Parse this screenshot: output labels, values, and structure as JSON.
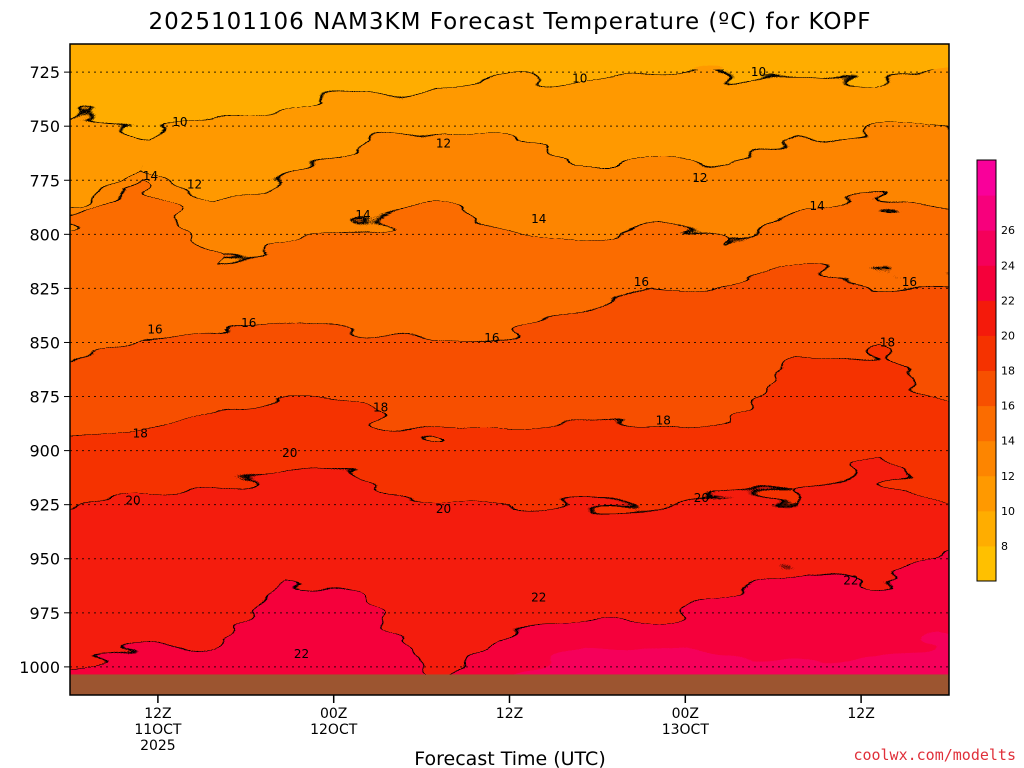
{
  "chart_data": {
    "type": "heatmap",
    "title": "2025101106 NAM3KM Forecast Temperature (ºC) for KOPF",
    "xlabel": "Forecast Time (UTC)",
    "ylabel": "",
    "credit": "coolwx.com/modelts",
    "y_ticks": [
      725,
      750,
      775,
      800,
      825,
      850,
      875,
      900,
      925,
      950,
      975,
      1000
    ],
    "y_tick_labels": [
      "725",
      "750",
      "775",
      "800",
      "825",
      "850",
      "875",
      "900",
      "925",
      "950",
      "975",
      "1000"
    ],
    "ylim": [
      1013,
      712
    ],
    "xlim_hours": [
      6,
      66
    ],
    "x_ticks": [
      {
        "hour": 12,
        "lines": [
          "12Z",
          "11OCT",
          "2025"
        ]
      },
      {
        "hour": 24,
        "lines": [
          "00Z",
          "12OCT"
        ]
      },
      {
        "hour": 36,
        "lines": [
          "12Z"
        ]
      },
      {
        "hour": 48,
        "lines": [
          "00Z",
          "13OCT"
        ]
      },
      {
        "hour": 60,
        "lines": [
          "12Z"
        ]
      }
    ],
    "colorbar": {
      "levels": [
        6,
        8,
        10,
        12,
        14,
        16,
        18,
        20,
        22,
        24,
        26,
        28
      ],
      "labels": [
        "8",
        "10",
        "12",
        "14",
        "16",
        "18",
        "20",
        "22",
        "24",
        "26"
      ],
      "colors": [
        "#ffc000",
        "#ffad00",
        "#ff9900",
        "#fd8500",
        "#fb6c00",
        "#f75000",
        "#f53200",
        "#f41a0b",
        "#f5003a",
        "#f5005a",
        "#f7007c",
        "#f9009a"
      ]
    },
    "contours": [
      {
        "value": 10,
        "label_positions": [
          {
            "h": 13.5,
            "p": 748
          },
          {
            "h": 40.8,
            "p": 728
          },
          {
            "h": 53.0,
            "p": 725
          }
        ]
      },
      {
        "value": 12,
        "label_positions": [
          {
            "h": 14.5,
            "p": 777
          },
          {
            "h": 31.5,
            "p": 758
          },
          {
            "h": 49.0,
            "p": 774
          }
        ]
      },
      {
        "value": 14,
        "label_positions": [
          {
            "h": 11.5,
            "p": 773
          },
          {
            "h": 26.0,
            "p": 791
          },
          {
            "h": 38.0,
            "p": 793
          },
          {
            "h": 57.0,
            "p": 787
          }
        ]
      },
      {
        "value": 16,
        "label_positions": [
          {
            "h": 11.8,
            "p": 844
          },
          {
            "h": 18.2,
            "p": 841
          },
          {
            "h": 34.8,
            "p": 848
          },
          {
            "h": 45.0,
            "p": 822
          },
          {
            "h": 63.3,
            "p": 822
          }
        ]
      },
      {
        "value": 18,
        "label_positions": [
          {
            "h": 10.8,
            "p": 892
          },
          {
            "h": 27.2,
            "p": 880
          },
          {
            "h": 46.5,
            "p": 886
          },
          {
            "h": 61.8,
            "p": 850
          }
        ]
      },
      {
        "value": 20,
        "label_positions": [
          {
            "h": 10.3,
            "p": 923
          },
          {
            "h": 21.0,
            "p": 901
          },
          {
            "h": 31.5,
            "p": 927
          },
          {
            "h": 49.1,
            "p": 922
          }
        ]
      },
      {
        "value": 22,
        "label_positions": [
          {
            "h": 21.8,
            "p": 994
          },
          {
            "h": 38.0,
            "p": 968
          },
          {
            "h": 59.3,
            "p": 960
          }
        ]
      }
    ],
    "surface_color": "#9c5530",
    "surface_pressure_mb": 1003.5
  }
}
